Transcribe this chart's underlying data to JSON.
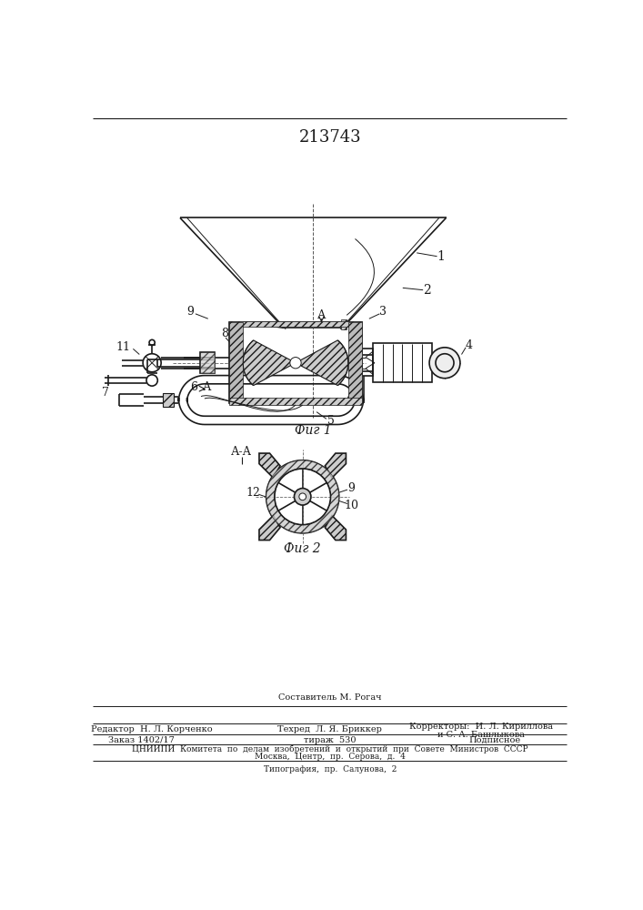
{
  "patent_number": "213743",
  "background_color": "#ffffff",
  "line_color": "#1a1a1a",
  "hatch_color": "#555555",
  "footer_texts": {
    "sostavitel": "Составитель М. Рогач",
    "redaktor": "Редактор  Н. Л. Корченко",
    "tehred": "Техред  Л. Я. Бриккер",
    "korrektory": "Корректоры:  И. Л. Кириллова",
    "korrektory2": "и С. А. Башлыкова",
    "zakaz": "Заказ 1402/17",
    "tirazh": "тираж  530",
    "podpisnoe": "Подписное",
    "cniip": "ЦНИИПИ  Комитета  по  делам  изобретений  и  открытий  при  Совете  Министров  СССР",
    "moscow": "Москва,  Центр,  пр.  Серова,  д.  4",
    "tipografia": "Типография,  пр.  Салунова,  2"
  },
  "fig1_label": "Фиг 1",
  "fig2_label": "Фиг 2",
  "section_label": "А-А",
  "A_marker": "А"
}
